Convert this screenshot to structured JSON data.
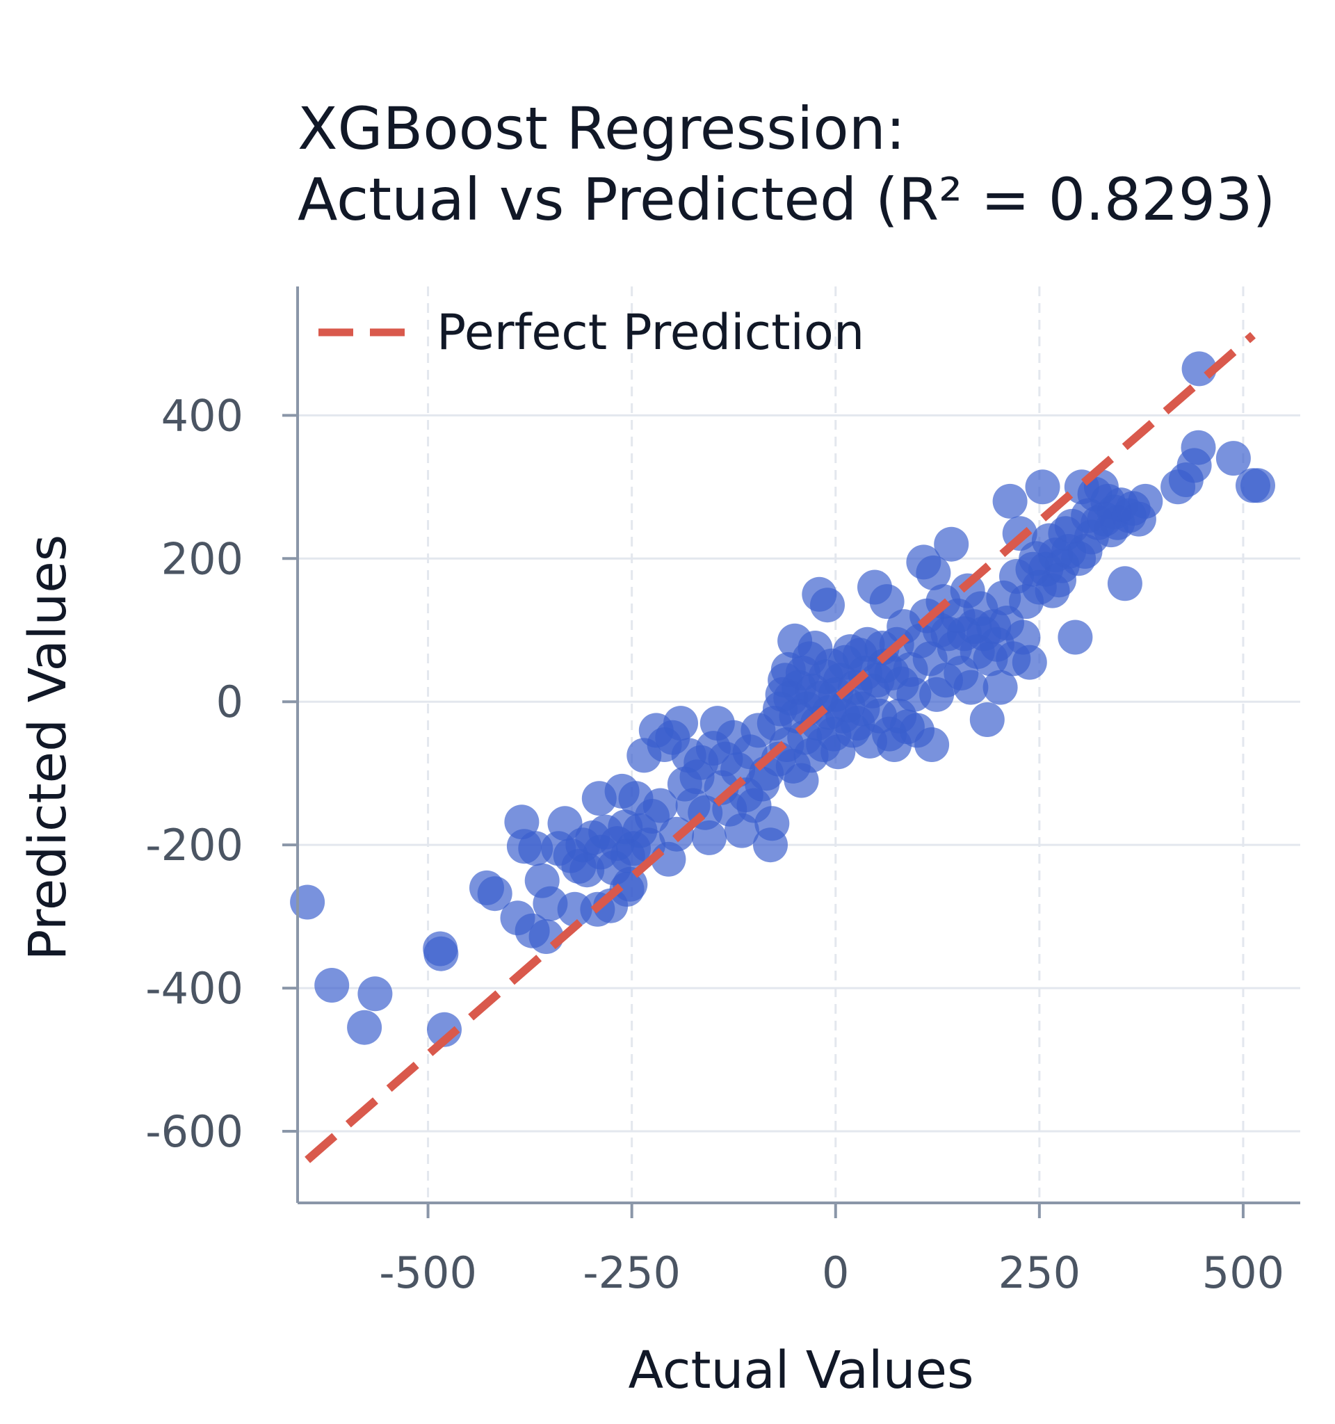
{
  "chart_data": {
    "type": "scatter",
    "title_line1": "XGBoost Regression:",
    "title_line2": "Actual vs Predicted (R² = 0.8293)",
    "xlabel": "Actual Values",
    "ylabel": "Predicted Values",
    "xlim": [
      -660,
      570
    ],
    "ylim": [
      -700,
      580
    ],
    "xticks": [
      -500,
      -250,
      0,
      250,
      500
    ],
    "yticks": [
      -600,
      -400,
      -200,
      0,
      200,
      400
    ],
    "xtick_labels": [
      "-500",
      "-250",
      "0",
      "250",
      "500"
    ],
    "ytick_labels": [
      "-600",
      "-400",
      "-200",
      "0",
      "200",
      "400"
    ],
    "grid": true,
    "legend": {
      "placement": "top-left",
      "entries": [
        {
          "label": "Perfect Prediction"
        }
      ]
    },
    "reference_line": {
      "from": [
        -648,
        -640
      ],
      "to": [
        512,
        512
      ],
      "color": "#d9594c",
      "style": "dashed"
    },
    "point_color": "#3a5fcd",
    "line_color": "#d9594c",
    "points": [
      [
        -648,
        -280
      ],
      [
        -618,
        -396
      ],
      [
        -578,
        -455
      ],
      [
        -565,
        -408
      ],
      [
        -485,
        -345
      ],
      [
        -484,
        -352
      ],
      [
        -480,
        -458
      ],
      [
        -428,
        -260
      ],
      [
        -418,
        -268
      ],
      [
        -390,
        -302
      ],
      [
        -385,
        -168
      ],
      [
        -382,
        -202
      ],
      [
        -372,
        -320
      ],
      [
        -368,
        -205
      ],
      [
        -360,
        -250
      ],
      [
        -355,
        -328
      ],
      [
        -350,
        -282
      ],
      [
        -340,
        -205
      ],
      [
        -332,
        -170
      ],
      [
        -325,
        -215
      ],
      [
        -320,
        -290
      ],
      [
        -315,
        -230
      ],
      [
        -310,
        -200
      ],
      [
        -305,
        -235
      ],
      [
        -298,
        -190
      ],
      [
        -292,
        -290
      ],
      [
        -290,
        -135
      ],
      [
        -288,
        -210
      ],
      [
        -282,
        -182
      ],
      [
        -276,
        -285
      ],
      [
        -272,
        -232
      ],
      [
        -268,
        -198
      ],
      [
        -262,
        -125
      ],
      [
        -258,
        -175
      ],
      [
        -255,
        -215
      ],
      [
        -252,
        -255
      ],
      [
        -248,
        -205
      ],
      [
        -245,
        -135
      ],
      [
        -240,
        -180
      ],
      [
        -256,
        -262
      ],
      [
        -235,
        -75
      ],
      [
        -230,
        -200
      ],
      [
        -225,
        -160
      ],
      [
        -220,
        -40
      ],
      [
        -215,
        -145
      ],
      [
        -210,
        -60
      ],
      [
        -205,
        -220
      ],
      [
        -200,
        -50
      ],
      [
        -195,
        -185
      ],
      [
        -190,
        -30
      ],
      [
        -185,
        -115
      ],
      [
        -180,
        -75
      ],
      [
        -175,
        -145
      ],
      [
        -170,
        -105
      ],
      [
        -165,
        -85
      ],
      [
        -160,
        -155
      ],
      [
        -155,
        -190
      ],
      [
        -150,
        -65
      ],
      [
        -145,
        -30
      ],
      [
        -140,
        -120
      ],
      [
        -135,
        -80
      ],
      [
        -130,
        -150
      ],
      [
        -125,
        -50
      ],
      [
        -120,
        -95
      ],
      [
        -115,
        -180
      ],
      [
        -110,
        -130
      ],
      [
        -105,
        -70
      ],
      [
        -100,
        -145
      ],
      [
        -95,
        -40
      ],
      [
        -90,
        -115
      ],
      [
        -85,
        -100
      ],
      [
        -80,
        -200
      ],
      [
        -78,
        -170
      ],
      [
        -75,
        -30
      ],
      [
        -70,
        -80
      ],
      [
        -68,
        -10
      ],
      [
        -65,
        10
      ],
      [
        -62,
        30
      ],
      [
        -60,
        -60
      ],
      [
        -58,
        45
      ],
      [
        -55,
        5
      ],
      [
        -52,
        -90
      ],
      [
        -50,
        85
      ],
      [
        -48,
        -20
      ],
      [
        -45,
        20
      ],
      [
        -42,
        -110
      ],
      [
        -40,
        40
      ],
      [
        -38,
        -50
      ],
      [
        -35,
        -10
      ],
      [
        -32,
        60
      ],
      [
        -30,
        -75
      ],
      [
        -28,
        15
      ],
      [
        -25,
        75
      ],
      [
        -22,
        -30
      ],
      [
        -20,
        150
      ],
      [
        -18,
        5
      ],
      [
        -15,
        -60
      ],
      [
        -12,
        35
      ],
      [
        -10,
        135
      ],
      [
        -8,
        -15
      ],
      [
        -5,
        50
      ],
      [
        -2,
        -45
      ],
      [
        0,
        10
      ],
      [
        3,
        -70
      ],
      [
        6,
        30
      ],
      [
        9,
        -20
      ],
      [
        12,
        55
      ],
      [
        15,
        -5
      ],
      [
        18,
        70
      ],
      [
        21,
        -40
      ],
      [
        24,
        20
      ],
      [
        27,
        -30
      ],
      [
        30,
        65
      ],
      [
        33,
        -10
      ],
      [
        36,
        40
      ],
      [
        39,
        80
      ],
      [
        42,
        -55
      ],
      [
        45,
        15
      ],
      [
        48,
        160
      ],
      [
        51,
        30
      ],
      [
        54,
        -20
      ],
      [
        57,
        75
      ],
      [
        60,
        50
      ],
      [
        63,
        140
      ],
      [
        66,
        -45
      ],
      [
        69,
        40
      ],
      [
        72,
        -60
      ],
      [
        75,
        80
      ],
      [
        78,
        -20
      ],
      [
        81,
        25
      ],
      [
        84,
        105
      ],
      [
        88,
        -35
      ],
      [
        92,
        45
      ],
      [
        96,
        10
      ],
      [
        100,
        -40
      ],
      [
        104,
        85
      ],
      [
        108,
        195
      ],
      [
        112,
        120
      ],
      [
        116,
        60
      ],
      [
        118,
        -60
      ],
      [
        120,
        180
      ],
      [
        124,
        10
      ],
      [
        128,
        100
      ],
      [
        132,
        140
      ],
      [
        135,
        30
      ],
      [
        138,
        95
      ],
      [
        142,
        220
      ],
      [
        146,
        75
      ],
      [
        150,
        120
      ],
      [
        154,
        40
      ],
      [
        158,
        95
      ],
      [
        162,
        155
      ],
      [
        166,
        20
      ],
      [
        170,
        105
      ],
      [
        174,
        70
      ],
      [
        178,
        130
      ],
      [
        182,
        95
      ],
      [
        186,
        -25
      ],
      [
        190,
        60
      ],
      [
        194,
        105
      ],
      [
        198,
        80
      ],
      [
        202,
        20
      ],
      [
        206,
        145
      ],
      [
        210,
        110
      ],
      [
        214,
        280
      ],
      [
        218,
        60
      ],
      [
        222,
        175
      ],
      [
        226,
        235
      ],
      [
        230,
        90
      ],
      [
        234,
        140
      ],
      [
        238,
        55
      ],
      [
        242,
        185
      ],
      [
        246,
        200
      ],
      [
        250,
        160
      ],
      [
        254,
        300
      ],
      [
        258,
        185
      ],
      [
        262,
        225
      ],
      [
        266,
        155
      ],
      [
        270,
        205
      ],
      [
        274,
        170
      ],
      [
        278,
        190
      ],
      [
        282,
        235
      ],
      [
        286,
        210
      ],
      [
        290,
        245
      ],
      [
        294,
        90
      ],
      [
        298,
        200
      ],
      [
        302,
        300
      ],
      [
        306,
        210
      ],
      [
        310,
        260
      ],
      [
        314,
        230
      ],
      [
        318,
        290
      ],
      [
        322,
        250
      ],
      [
        326,
        300
      ],
      [
        330,
        255
      ],
      [
        334,
        280
      ],
      [
        338,
        240
      ],
      [
        342,
        265
      ],
      [
        346,
        250
      ],
      [
        350,
        275
      ],
      [
        355,
        165
      ],
      [
        360,
        260
      ],
      [
        365,
        270
      ],
      [
        372,
        255
      ],
      [
        380,
        280
      ],
      [
        420,
        300
      ],
      [
        430,
        310
      ],
      [
        440,
        330
      ],
      [
        445,
        355
      ],
      [
        446,
        465
      ],
      [
        488,
        340
      ],
      [
        512,
        302
      ],
      [
        518,
        302
      ]
    ]
  }
}
